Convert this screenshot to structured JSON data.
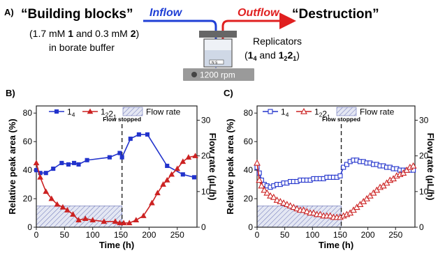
{
  "schematic": {
    "panel_label": "A)",
    "building_blocks_title": "“Building blocks”",
    "inflow_label": "Inflow",
    "outflow_label": "Outflow",
    "destruction_title": "“Destruction”",
    "concentration_line": [
      "(1.7 mM ",
      "1",
      " and 0.3 mM ",
      "2",
      ")"
    ],
    "buffer_line": "in borate buffer",
    "replicators_title": "Replicators",
    "replicators_species": [
      "(",
      "1",
      "4",
      " and ",
      "1",
      "2",
      "2",
      "1",
      ")"
    ],
    "stirrer_label": "1200 rpm",
    "vial_mark": "N  S",
    "inflow_color": "#1f3fd6",
    "outflow_color": "#e02020"
  },
  "chart_data": [
    {
      "type": "line",
      "panel_label": "B)",
      "xlabel": "Time (h)",
      "ylabel": "Relative peak area (%)",
      "y2label": "Flow rate (μL/h)",
      "xlim": [
        0,
        285
      ],
      "ylim": [
        0,
        85
      ],
      "y2lim": [
        0,
        34
      ],
      "xticks": [
        0,
        50,
        100,
        150,
        200,
        250
      ],
      "yticks": [
        0,
        20,
        40,
        60,
        80
      ],
      "y2ticks": [
        0,
        10,
        20,
        30
      ],
      "annotation": "Flow stopped",
      "annotation_x": 152,
      "legend": [
        "1_4",
        "1_2 2_1",
        "Flow rate"
      ],
      "flow_rate": {
        "x": [
          0,
          152
        ],
        "value": 6
      },
      "series": [
        {
          "name": "1_4",
          "color": "#2233cc",
          "marker": "square-filled",
          "x": [
            0,
            7,
            17,
            30,
            45,
            57,
            67,
            75,
            90,
            130,
            148,
            152,
            167,
            182,
            197,
            232,
            260,
            280
          ],
          "y": [
            40,
            38,
            38,
            41,
            45,
            44,
            45,
            44,
            47,
            49,
            52,
            49,
            62,
            65,
            65,
            43,
            37,
            35
          ]
        },
        {
          "name": "1_2 2_1",
          "color": "#cc2222",
          "marker": "triangle-filled",
          "x": [
            0,
            7,
            17,
            27,
            37,
            47,
            55,
            65,
            75,
            87,
            100,
            120,
            140,
            148,
            155,
            165,
            177,
            190,
            205,
            215,
            225,
            232,
            240,
            250,
            260,
            270,
            282
          ],
          "y": [
            45,
            35,
            25,
            20,
            16,
            14,
            12,
            9,
            5,
            6,
            5,
            4,
            4,
            3,
            3,
            3,
            5,
            8,
            17,
            24,
            30,
            33,
            37,
            41,
            46,
            49,
            50
          ]
        }
      ]
    },
    {
      "type": "line",
      "panel_label": "C)",
      "xlabel": "Time (h)",
      "ylabel": "Relative peak area (%)",
      "y2label": "Flow rate (μL/h)",
      "xlim": [
        0,
        285
      ],
      "ylim": [
        0,
        85
      ],
      "y2lim": [
        0,
        34
      ],
      "xticks": [
        0,
        50,
        100,
        150,
        200,
        250
      ],
      "yticks": [
        0,
        20,
        40,
        60,
        80
      ],
      "y2ticks": [
        0,
        10,
        20,
        30
      ],
      "annotation": "Flow stopped",
      "annotation_x": 152,
      "legend": [
        "1_4",
        "1_2 2_1",
        "Flow rate"
      ],
      "flow_rate": {
        "x": [
          0,
          152
        ],
        "value": 6
      },
      "series": [
        {
          "name": "1_4",
          "color": "#2233cc",
          "marker": "square-open",
          "x": [
            0,
            4,
            8,
            13,
            18,
            24,
            30,
            36,
            42,
            48,
            54,
            60,
            66,
            72,
            78,
            84,
            90,
            96,
            102,
            108,
            114,
            120,
            126,
            132,
            138,
            144,
            150,
            156,
            162,
            168,
            174,
            180,
            186,
            192,
            198,
            204,
            210,
            216,
            222,
            228,
            234,
            240,
            246,
            252,
            258,
            264,
            270,
            276,
            282
          ],
          "y": [
            42,
            38,
            33,
            30,
            29,
            28,
            29,
            30,
            30,
            31,
            31,
            32,
            32,
            32,
            33,
            33,
            33,
            33,
            34,
            34,
            34,
            34,
            35,
            35,
            35,
            35,
            36,
            42,
            44,
            46,
            47,
            47,
            46,
            46,
            45,
            45,
            44,
            44,
            43,
            43,
            42,
            42,
            41,
            41,
            40,
            40,
            40,
            40,
            40
          ]
        },
        {
          "name": "1_2 2_1",
          "color": "#cc2222",
          "marker": "triangle-open",
          "x": [
            0,
            4,
            8,
            13,
            18,
            24,
            30,
            36,
            42,
            48,
            54,
            60,
            66,
            72,
            78,
            84,
            90,
            96,
            102,
            108,
            114,
            120,
            126,
            132,
            138,
            144,
            150,
            156,
            162,
            168,
            174,
            180,
            186,
            192,
            198,
            204,
            210,
            216,
            222,
            228,
            234,
            240,
            246,
            252,
            258,
            264,
            270,
            276,
            282
          ],
          "y": [
            45,
            33,
            29,
            26,
            24,
            22,
            21,
            19,
            18,
            17,
            16,
            15,
            14,
            13,
            12,
            12,
            11,
            10,
            10,
            9,
            9,
            8,
            8,
            8,
            7,
            7,
            7,
            8,
            9,
            10,
            12,
            14,
            16,
            18,
            20,
            22,
            24,
            26,
            28,
            29,
            31,
            33,
            34,
            36,
            37,
            38,
            40,
            42,
            43
          ]
        }
      ]
    }
  ]
}
